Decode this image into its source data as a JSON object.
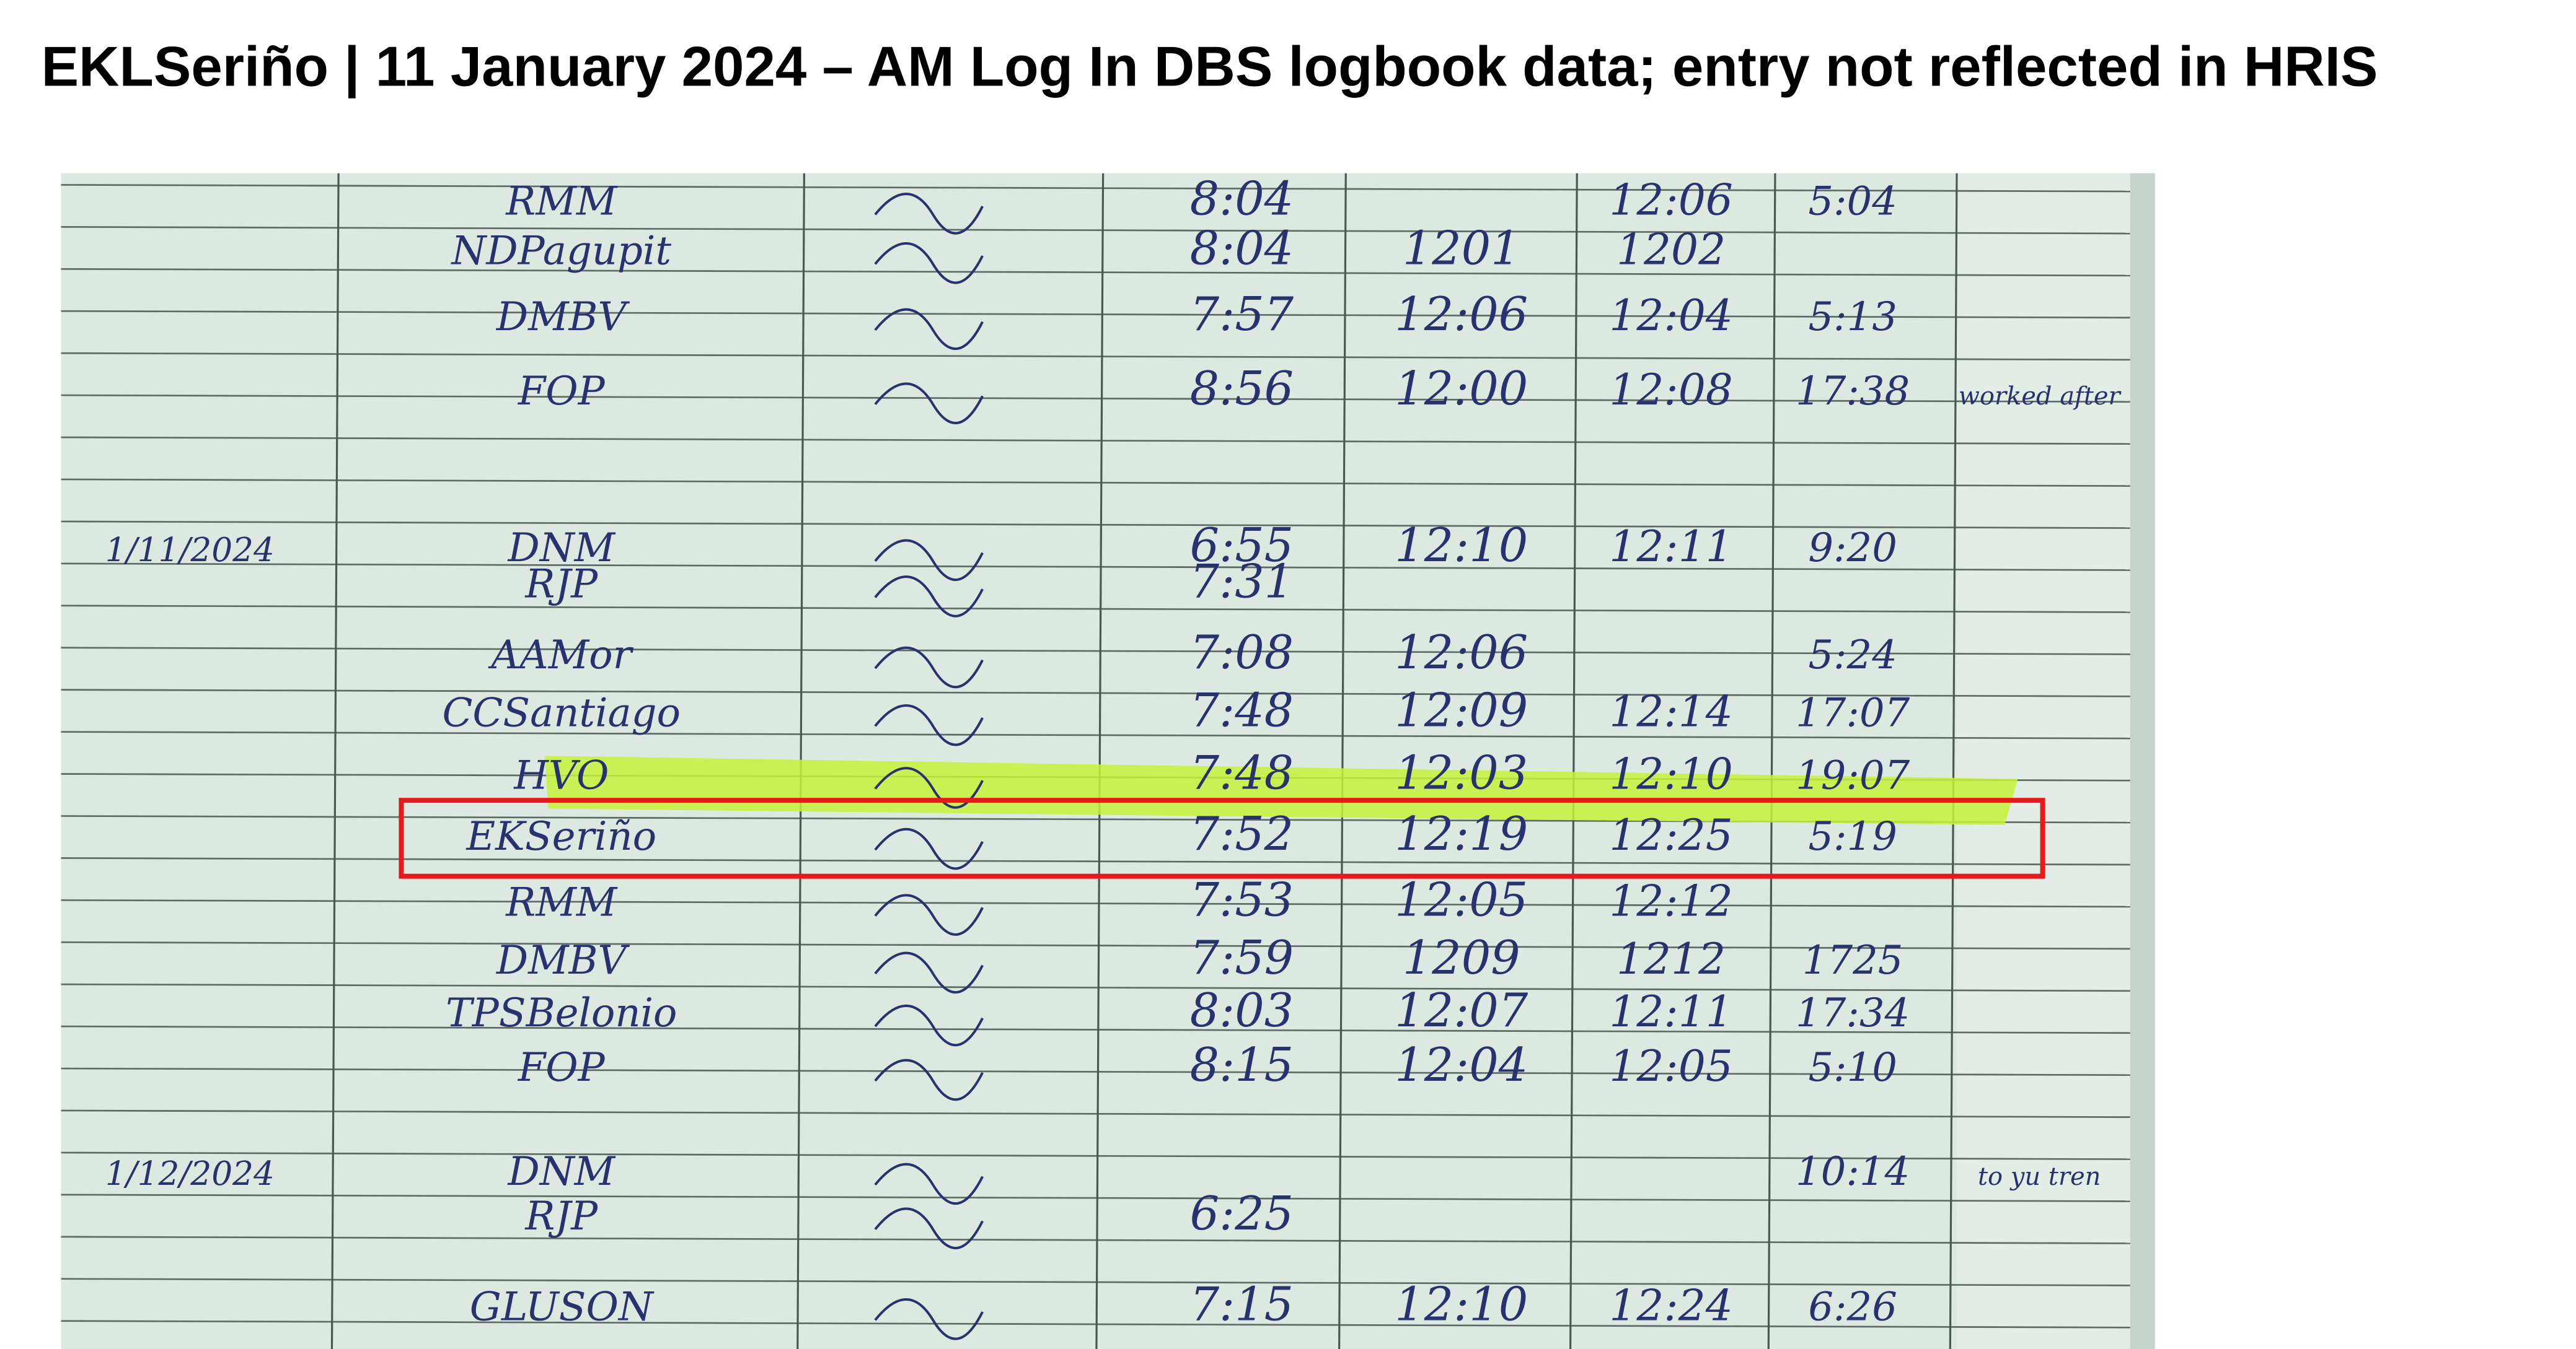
{
  "header": {
    "title": "EKLSeriño | 11 January 2024 – AM Log In DBS logbook data; entry not reflected in HRIS"
  },
  "logbook": {
    "rows": [
      {
        "name": "RMM",
        "am_in": "8:04",
        "pm_in": "12:06",
        "pm_out": "5:04"
      },
      {
        "name": "NDPagupit",
        "am_in": "8:04",
        "am_out": "1201",
        "pm_in": "1202"
      },
      {
        "name": "DMBV",
        "am_in": "7:57",
        "am_out": "12:06",
        "pm_in": "12:04",
        "pm_out": "5:13"
      },
      {
        "name": "FOP",
        "am_in": "8:56",
        "am_out": "12:00",
        "pm_in": "12:08",
        "pm_out": "17:38",
        "remarks": "worked after"
      },
      {
        "date": "1/11/2024",
        "name": "DNM",
        "am_in": "6:55",
        "am_out": "12:10",
        "pm_in": "12:11",
        "pm_out": "9:20"
      },
      {
        "name": "RJP",
        "am_in": "7:31"
      },
      {
        "name": "AAMor",
        "am_in": "7:08",
        "am_out": "12:06",
        "pm_out": "5:24"
      },
      {
        "name": "CCSantiago",
        "am_in": "7:48",
        "am_out": "12:09",
        "pm_in": "12:14",
        "pm_out": "17:07"
      },
      {
        "name": "HVO",
        "am_in": "7:48",
        "am_out": "12:03",
        "pm_in": "12:10",
        "pm_out": "19:07"
      },
      {
        "name": "EKSeriño",
        "am_in": "7:52",
        "am_out": "12:19",
        "pm_in": "12:25",
        "pm_out": "5:19"
      },
      {
        "name": "RMM",
        "am_in": "7:53",
        "am_out": "12:05",
        "pm_in": "12:12"
      },
      {
        "name": "DMBV",
        "am_in": "7:59",
        "am_out": "1209",
        "pm_in": "1212",
        "pm_out": "1725"
      },
      {
        "name": "TPSBelonio",
        "am_in": "8:03",
        "am_out": "12:07",
        "pm_in": "12:11",
        "pm_out": "17:34"
      },
      {
        "name": "FOP",
        "am_in": "8:15",
        "am_out": "12:04",
        "pm_in": "12:05",
        "pm_out": "5:10"
      },
      {
        "date": "1/12/2024",
        "name": "DNM",
        "pm_out": "10:14",
        "remarks": "to yu tren"
      },
      {
        "name": "RJP",
        "am_in": "6:25"
      },
      {
        "name": "GLUSON",
        "am_in": "7:15",
        "am_out": "12:10",
        "pm_in": "12:24",
        "pm_out": "6:26"
      }
    ]
  }
}
